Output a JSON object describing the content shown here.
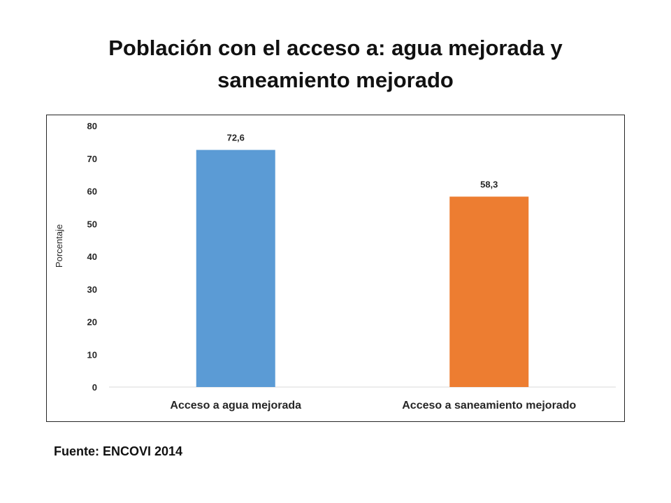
{
  "slide": {
    "title": "Población con el acceso a: agua mejorada y saneamiento mejorado",
    "source": "Fuente: ENCOVI 2014"
  },
  "chart_data": {
    "type": "bar",
    "title": "",
    "xlabel": "",
    "ylabel": "Porcentaje",
    "ylim": [
      0,
      80
    ],
    "yticks": [
      0,
      10,
      20,
      30,
      40,
      50,
      60,
      70,
      80
    ],
    "grid": false,
    "legend": "none",
    "categories": [
      "Acceso a agua mejorada",
      "Acceso a saneamiento mejorado"
    ],
    "values": [
      72.6,
      58.3
    ],
    "data_labels": [
      "72,6",
      "58,3"
    ],
    "colors": [
      "#5b9bd5",
      "#ed7d31"
    ]
  }
}
